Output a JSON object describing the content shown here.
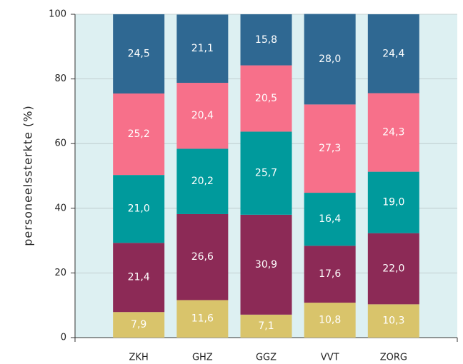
{
  "chart_data": {
    "type": "stacked_bar",
    "y_label": "personeelssterkte (%)",
    "categories": [
      "ZKH",
      "GHZ",
      "GGZ",
      "VVT",
      "ZORG"
    ],
    "series": [
      {
        "color": "#d9c46b",
        "values": [
          7.9,
          11.6,
          7.1,
          10.8,
          10.3
        ],
        "value_labels": [
          "7,9",
          "11,6",
          "7,1",
          "10,8",
          "10,3"
        ]
      },
      {
        "color": "#8c2a56",
        "values": [
          21.4,
          26.6,
          30.9,
          17.6,
          22.0
        ],
        "value_labels": [
          "21,4",
          "26,6",
          "30,9",
          "17,6",
          "22,0"
        ]
      },
      {
        "color": "#009a9c",
        "values": [
          21.0,
          20.2,
          25.7,
          16.4,
          19.0
        ],
        "value_labels": [
          "21,0",
          "20,2",
          "25,7",
          "16,4",
          "19,0"
        ]
      },
      {
        "color": "#f7708a",
        "values": [
          25.2,
          20.4,
          20.5,
          27.3,
          24.3
        ],
        "value_labels": [
          "25,2",
          "20,4",
          "20,5",
          "27,3",
          "24,3"
        ]
      },
      {
        "color": "#2f6892",
        "values": [
          24.5,
          21.1,
          15.8,
          28.0,
          24.4
        ],
        "value_labels": [
          "24,5",
          "21,1",
          "15,8",
          "28,0",
          "24,4"
        ]
      }
    ],
    "ylim": [
      0,
      100
    ],
    "yticks": [
      0,
      20,
      40,
      60,
      80,
      100
    ],
    "grid": true
  }
}
